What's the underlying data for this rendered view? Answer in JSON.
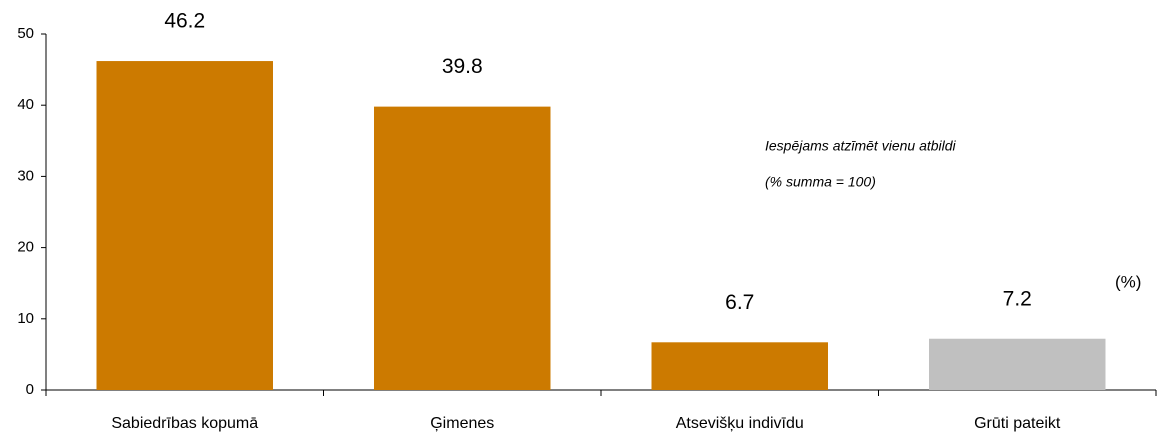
{
  "chart_data": {
    "type": "bar",
    "categories": [
      "Sabiedrības kopumā",
      "Ģimenes",
      "Atsevišķu indivīdu",
      "Grūti pateikt"
    ],
    "values": [
      46.2,
      39.8,
      6.7,
      7.2
    ],
    "colors": [
      "#cc7a00",
      "#cc7a00",
      "#cc7a00",
      "#c0c0c0"
    ],
    "ylim": [
      0,
      50
    ],
    "yticks": [
      0,
      10,
      20,
      30,
      40,
      50
    ],
    "grid": false,
    "annotations": [
      "Iespējams atzīmēt vienu atbildi",
      "(% summa = 100)"
    ],
    "unit_label": "(%)"
  }
}
